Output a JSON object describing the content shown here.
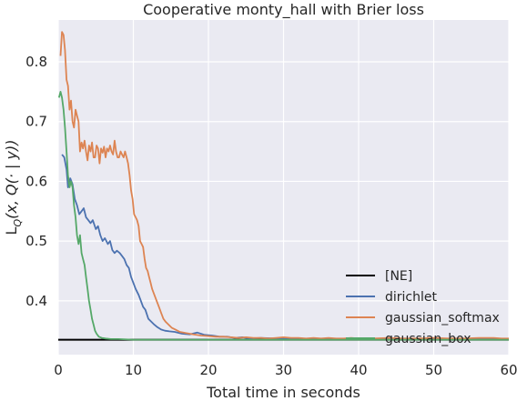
{
  "chart_data": {
    "type": "line",
    "title": "Cooperative monty_hall with Brier loss",
    "xlabel": "Total time in seconds",
    "ylabel": "L_Q(x, Q(· | y))",
    "xlim": [
      0,
      60
    ],
    "ylim": [
      0.31,
      0.87
    ],
    "xticks": [
      0,
      10,
      20,
      30,
      40,
      50,
      60
    ],
    "yticks": [
      0.4,
      0.5,
      0.6,
      0.7,
      0.8
    ],
    "grid": true,
    "legend_position": "lower-right",
    "background": "#eaeaf2",
    "reference_lines": [
      {
        "name": "[NE]",
        "y": 0.335,
        "color": "#000000"
      }
    ],
    "series": [
      {
        "name": "dirichlet",
        "color": "#4c72b0",
        "x": [
          0.5,
          0.8,
          1.1,
          1.3,
          1.6,
          1.9,
          2.2,
          2.5,
          2.8,
          3.1,
          3.4,
          3.7,
          4.0,
          4.3,
          4.6,
          5.0,
          5.3,
          5.6,
          5.9,
          6.2,
          6.6,
          6.9,
          7.2,
          7.5,
          7.8,
          8.2,
          8.5,
          8.8,
          9.1,
          9.4,
          9.7,
          10.0,
          10.3,
          10.7,
          11.0,
          11.3,
          11.6,
          12.0,
          12.4,
          12.8,
          13.2,
          13.7,
          14.2,
          14.8,
          15.5,
          16.5,
          17.5,
          18.5,
          19.5,
          20.5,
          21.5,
          22.5,
          23.5,
          24.5,
          25.5,
          27,
          29,
          31,
          34,
          38,
          42,
          46,
          50,
          54,
          57,
          60
        ],
        "values": [
          0.645,
          0.64,
          0.62,
          0.59,
          0.605,
          0.595,
          0.57,
          0.56,
          0.545,
          0.55,
          0.555,
          0.54,
          0.535,
          0.53,
          0.535,
          0.52,
          0.525,
          0.51,
          0.5,
          0.505,
          0.495,
          0.5,
          0.485,
          0.48,
          0.484,
          0.48,
          0.475,
          0.47,
          0.46,
          0.455,
          0.44,
          0.43,
          0.42,
          0.41,
          0.4,
          0.39,
          0.385,
          0.37,
          0.365,
          0.36,
          0.356,
          0.352,
          0.35,
          0.349,
          0.348,
          0.345,
          0.344,
          0.347,
          0.343,
          0.342,
          0.34,
          0.34,
          0.338,
          0.339,
          0.337,
          0.338,
          0.337,
          0.336,
          0.337,
          0.336,
          0.336,
          0.337,
          0.336,
          0.336,
          0.337,
          0.336
        ]
      },
      {
        "name": "gaussian_softmax",
        "color": "#dd8452",
        "x": [
          0.3,
          0.5,
          0.7,
          0.9,
          1.1,
          1.3,
          1.5,
          1.7,
          1.9,
          2.1,
          2.3,
          2.5,
          2.7,
          2.9,
          3.1,
          3.3,
          3.5,
          3.7,
          3.9,
          4.1,
          4.3,
          4.5,
          4.7,
          4.9,
          5.1,
          5.3,
          5.5,
          5.7,
          5.9,
          6.1,
          6.3,
          6.5,
          6.7,
          6.9,
          7.1,
          7.3,
          7.5,
          7.7,
          7.9,
          8.1,
          8.3,
          8.5,
          8.7,
          8.9,
          9.1,
          9.3,
          9.5,
          9.7,
          9.9,
          10.1,
          10.3,
          10.5,
          10.7,
          10.9,
          11.1,
          11.3,
          11.5,
          11.7,
          11.9,
          12.1,
          12.3,
          12.5,
          12.8,
          13.1,
          13.4,
          13.7,
          14.0,
          14.3,
          14.7,
          15.1,
          15.6,
          16.2,
          17,
          18,
          19,
          20,
          21,
          22,
          23,
          24,
          25,
          26,
          27,
          28,
          29,
          30,
          31,
          32,
          33,
          34,
          35,
          36,
          37,
          38,
          39,
          40,
          42,
          44,
          46,
          48,
          50,
          52,
          54,
          56,
          58,
          59,
          60
        ],
        "values": [
          0.81,
          0.85,
          0.845,
          0.82,
          0.77,
          0.76,
          0.72,
          0.735,
          0.7,
          0.69,
          0.72,
          0.71,
          0.7,
          0.65,
          0.665,
          0.655,
          0.668,
          0.65,
          0.635,
          0.66,
          0.65,
          0.665,
          0.64,
          0.64,
          0.66,
          0.655,
          0.63,
          0.655,
          0.648,
          0.658,
          0.64,
          0.655,
          0.65,
          0.66,
          0.65,
          0.645,
          0.668,
          0.65,
          0.64,
          0.64,
          0.65,
          0.645,
          0.64,
          0.65,
          0.64,
          0.63,
          0.61,
          0.585,
          0.57,
          0.545,
          0.54,
          0.535,
          0.525,
          0.5,
          0.495,
          0.49,
          0.47,
          0.455,
          0.45,
          0.44,
          0.43,
          0.42,
          0.41,
          0.4,
          0.39,
          0.38,
          0.37,
          0.365,
          0.36,
          0.355,
          0.352,
          0.348,
          0.346,
          0.344,
          0.342,
          0.341,
          0.34,
          0.34,
          0.339,
          0.338,
          0.339,
          0.338,
          0.338,
          0.337,
          0.338,
          0.339,
          0.338,
          0.338,
          0.337,
          0.338,
          0.337,
          0.338,
          0.337,
          0.337,
          0.338,
          0.337,
          0.337,
          0.338,
          0.337,
          0.337,
          0.338,
          0.337,
          0.337,
          0.338,
          0.338,
          0.337,
          0.337
        ]
      },
      {
        "name": "gaussian_box",
        "color": "#55a868",
        "x": [
          0.1,
          0.3,
          0.5,
          0.7,
          0.9,
          1.1,
          1.3,
          1.5,
          1.7,
          1.9,
          2.1,
          2.3,
          2.5,
          2.7,
          2.9,
          3.1,
          3.3,
          3.5,
          3.7,
          3.9,
          4.1,
          4.3,
          4.5,
          4.7,
          4.9,
          5.1,
          5.4,
          5.8,
          6.3,
          7.0,
          8.0,
          10,
          14,
          20,
          30,
          40,
          50,
          60
        ],
        "values": [
          0.74,
          0.75,
          0.74,
          0.72,
          0.69,
          0.65,
          0.61,
          0.59,
          0.6,
          0.59,
          0.56,
          0.54,
          0.51,
          0.495,
          0.51,
          0.48,
          0.47,
          0.46,
          0.44,
          0.42,
          0.4,
          0.385,
          0.37,
          0.36,
          0.35,
          0.345,
          0.34,
          0.338,
          0.337,
          0.336,
          0.336,
          0.335,
          0.335,
          0.335,
          0.335,
          0.335,
          0.335,
          0.335
        ]
      }
    ]
  }
}
